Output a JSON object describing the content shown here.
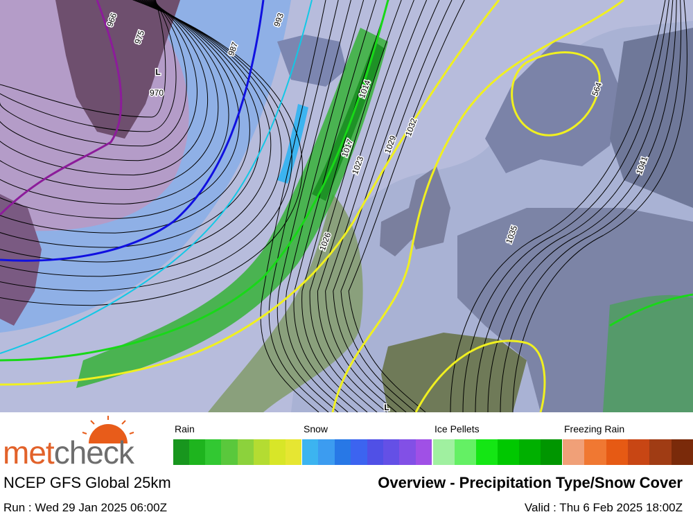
{
  "map": {
    "labels": [
      "L",
      "970",
      "993",
      "987",
      "975",
      "966",
      "1014",
      "1017",
      "1023",
      "1026",
      "1029",
      "1032",
      "1035",
      "1041",
      "564",
      "L"
    ]
  },
  "legend": {
    "groups": [
      {
        "name": "Rain",
        "colors": [
          "#18961e",
          "#1eb41e",
          "#32c832",
          "#5ac83c",
          "#8cd23c",
          "#b4dc32",
          "#d8e628",
          "#e6e632"
        ]
      },
      {
        "name": "Snow",
        "colors": [
          "#3cb4f0",
          "#3c9cf0",
          "#2878e6",
          "#3c64f0",
          "#5050e6",
          "#6450e6",
          "#8250e6",
          "#a050e6"
        ]
      },
      {
        "name": "Ice Pellets",
        "colors": [
          "#a0f0a0",
          "#64f064",
          "#14e614",
          "#00c800",
          "#00b000",
          "#009600"
        ]
      },
      {
        "name": "Freezing Rain",
        "colors": [
          "#f0a078",
          "#f07832",
          "#e65a14",
          "#c84614",
          "#a03c14",
          "#7a2a0a"
        ]
      }
    ]
  },
  "logo": {
    "part1": "met",
    "part2": "check"
  },
  "footer": {
    "model": "NCEP GFS Global 25km",
    "title": "Overview - Precipitation Type/Snow Cover",
    "run": "Run : Wed 29 Jan 2025 06:00Z",
    "valid": "Valid : Thu 6 Feb 2025 18:00Z"
  }
}
